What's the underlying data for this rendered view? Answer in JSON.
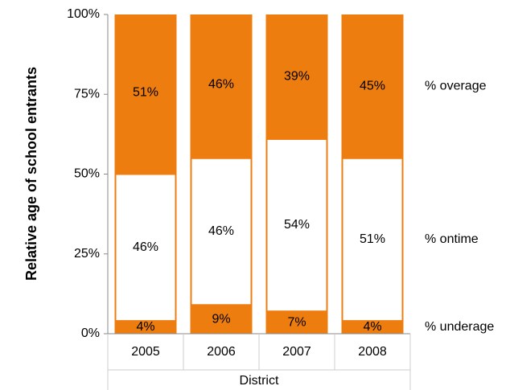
{
  "chart_data": {
    "type": "stacked_bar",
    "y_label": "Relative age of school entrants",
    "x_label": "District",
    "categories": [
      "2005",
      "2006",
      "2007",
      "2008"
    ],
    "series": [
      {
        "name": "% underage",
        "color": "#ee7d10",
        "values": [
          4,
          9,
          7,
          4
        ],
        "value_labels": [
          "4%",
          "9%",
          "7%",
          "4%"
        ]
      },
      {
        "name": "% ontime",
        "color": "#ffffff",
        "values": [
          46,
          46,
          54,
          51
        ],
        "value_labels": [
          "46%",
          "46%",
          "54%",
          "51%"
        ]
      },
      {
        "name": "% overage",
        "color": "#ee7d10",
        "values": [
          51,
          46,
          39,
          45
        ],
        "value_labels": [
          "51%",
          "46%",
          "39%",
          "45%"
        ]
      }
    ],
    "ylim": [
      0,
      100
    ],
    "yticks": [
      {
        "value": 0,
        "label": "0%"
      },
      {
        "value": 25,
        "label": "25%"
      },
      {
        "value": 50,
        "label": "50%"
      },
      {
        "value": 75,
        "label": "75%"
      },
      {
        "value": 100,
        "label": "100%"
      }
    ]
  }
}
